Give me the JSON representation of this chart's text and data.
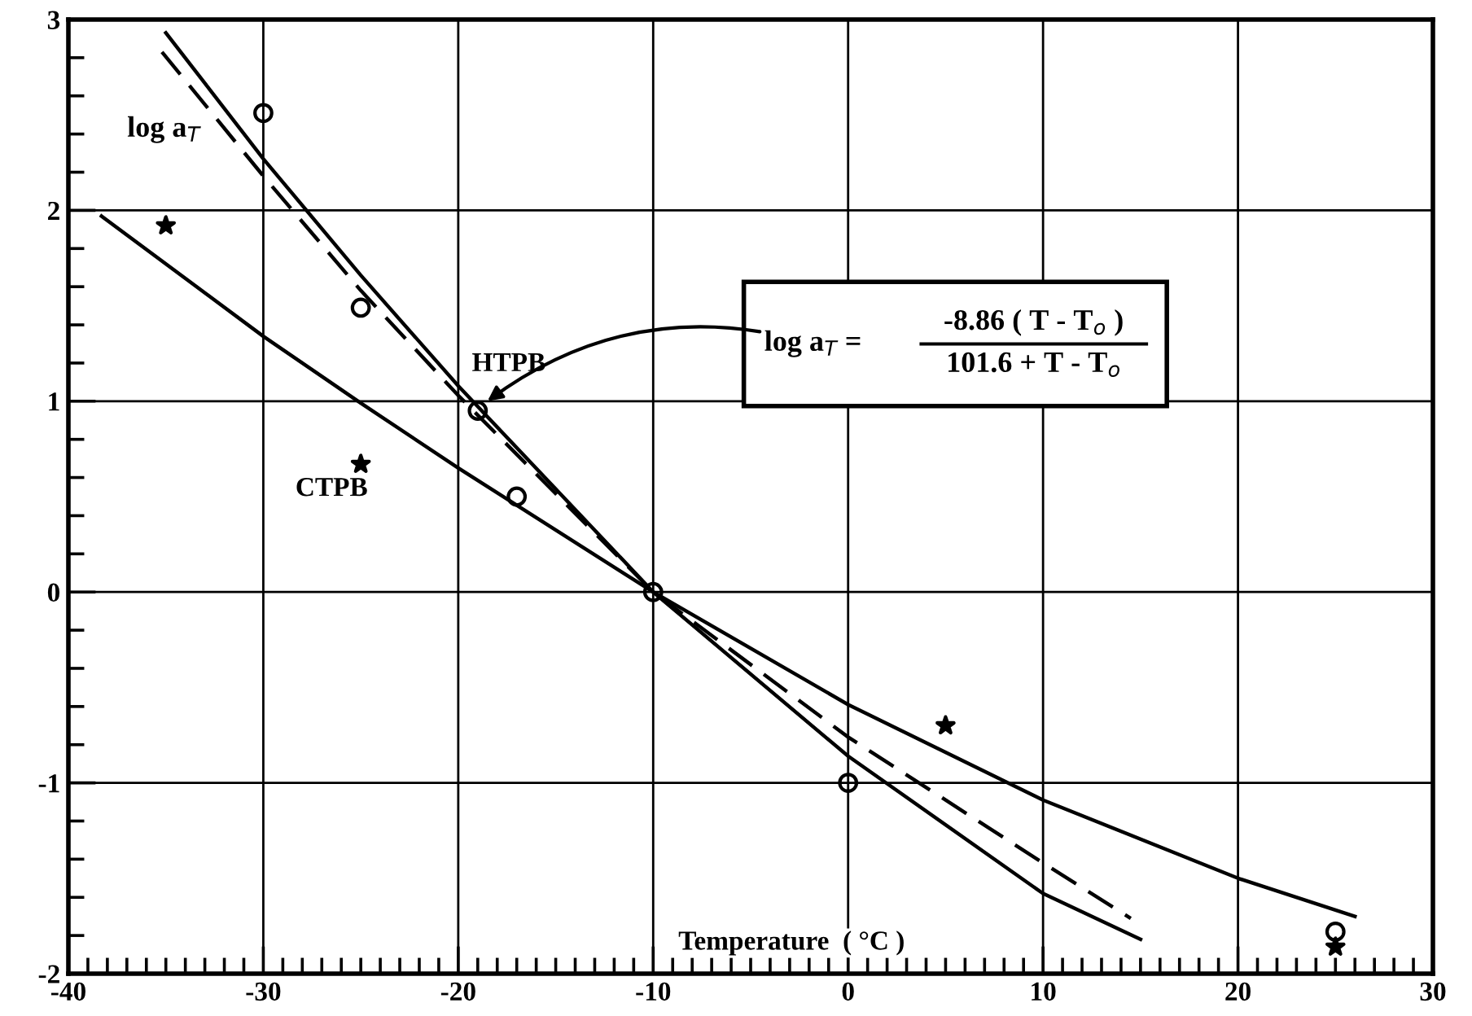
{
  "chart_data": {
    "type": "line",
    "xlabel": "Temperature  ( °C )",
    "ylabel": "log a$_{T}$",
    "xlim": [
      -40,
      30
    ],
    "xticks": [
      -40,
      -30,
      -20,
      -10,
      0,
      10,
      20,
      30
    ],
    "ylim": [
      -2,
      3
    ],
    "yticks": [
      -2,
      -1,
      0,
      1,
      2,
      3
    ],
    "grid": true,
    "annotations": [
      {
        "text": "log a$_{T}$ =",
        "x": -18.5,
        "y": 1.0
      },
      "-8.86 ( T - T$_{o}$ )",
      "101.6 + T - T$_{o}$"
    ],
    "series": [
      {
        "name": "HTPB",
        "color": "#000000",
        "line_style": "solid",
        "x": [
          -35,
          -30,
          -25,
          -20,
          -10,
          0,
          10,
          15
        ],
        "values": [
          2.93,
          2.27,
          1.66,
          1.08,
          0,
          -0.86,
          -1.58,
          -1.82
        ]
      },
      {
        "color": "#000000",
        "line_style": "dashed",
        "x": [
          -35.2,
          -30,
          -25,
          -20,
          -10,
          0,
          10,
          14.5
        ],
        "values": [
          2.83,
          2.18,
          1.58,
          1.03,
          0,
          -0.76,
          -1.42,
          -1.71
        ]
      },
      {
        "name": "CTPB",
        "color": "#000000",
        "line_style": "solid",
        "x": [
          -38.3,
          -30,
          -25,
          -20,
          -10,
          0,
          10,
          20,
          26
        ],
        "values": [
          1.97,
          1.34,
          0.99,
          0.65,
          0,
          -0.59,
          -1.09,
          -1.5,
          -1.7
        ]
      },
      {
        "type": "scatter",
        "color": "#000000",
        "marker": "circle",
        "x": [
          -30,
          -25,
          -19,
          -17,
          -10,
          0,
          25
        ],
        "values": [
          2.51,
          1.49,
          0.95,
          0.5,
          0,
          -1.0,
          -1.78
        ]
      },
      {
        "type": "scatter",
        "color": "#000000",
        "marker": "star",
        "x": [
          -35,
          -25,
          5,
          25
        ],
        "values": [
          1.92,
          0.67,
          -0.7,
          -1.86
        ]
      }
    ]
  }
}
